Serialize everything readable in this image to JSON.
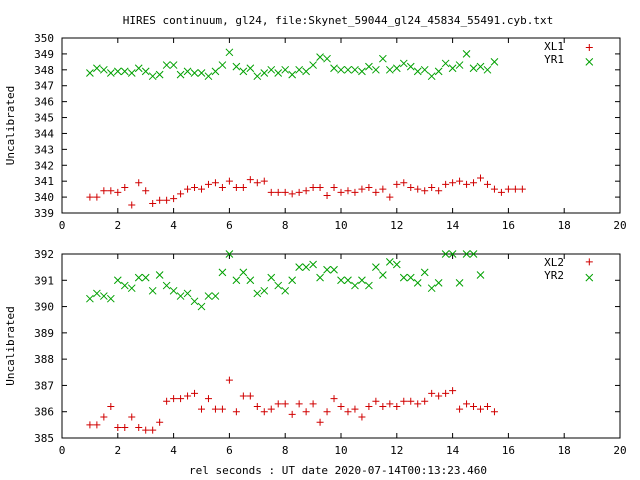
{
  "title": "HIRES continuum, gl24, file:Skynet_59044_gl24_45834_55491.cyb.txt",
  "xlabel": "rel seconds : UT date 2020-07-14T00:13:23.460",
  "colors": {
    "red": "#d00000",
    "green": "#00a000",
    "axis": "#000000"
  },
  "chart_data": [
    {
      "type": "scatter",
      "ylabel": "Uncalibrated",
      "xlim": [
        0,
        20
      ],
      "ylim": [
        339,
        350
      ],
      "xticks": [
        0,
        2,
        4,
        6,
        8,
        10,
        12,
        14,
        16,
        18,
        20
      ],
      "yticks": [
        339,
        340,
        341,
        342,
        343,
        344,
        345,
        346,
        347,
        348,
        349,
        350
      ],
      "grid": false,
      "legend_position": "top-right",
      "series": [
        {
          "name": "XL1",
          "color": "#d00000",
          "marker": "plus",
          "points": [
            [
              1.0,
              340.0
            ],
            [
              1.25,
              340.0
            ],
            [
              1.5,
              340.4
            ],
            [
              1.75,
              340.4
            ],
            [
              2.0,
              340.3
            ],
            [
              2.25,
              340.6
            ],
            [
              2.5,
              339.5
            ],
            [
              2.75,
              340.9
            ],
            [
              3.0,
              340.4
            ],
            [
              3.25,
              339.6
            ],
            [
              3.5,
              339.8
            ],
            [
              3.75,
              339.8
            ],
            [
              4.0,
              339.9
            ],
            [
              4.25,
              340.2
            ],
            [
              4.5,
              340.5
            ],
            [
              4.75,
              340.6
            ],
            [
              5.0,
              340.5
            ],
            [
              5.25,
              340.8
            ],
            [
              5.5,
              340.9
            ],
            [
              5.75,
              340.6
            ],
            [
              6.0,
              341.0
            ],
            [
              6.25,
              340.6
            ],
            [
              6.5,
              340.6
            ],
            [
              6.75,
              341.1
            ],
            [
              7.0,
              340.9
            ],
            [
              7.25,
              341.0
            ],
            [
              7.5,
              340.3
            ],
            [
              7.75,
              340.3
            ],
            [
              8.0,
              340.3
            ],
            [
              8.25,
              340.2
            ],
            [
              8.5,
              340.3
            ],
            [
              8.75,
              340.4
            ],
            [
              9.0,
              340.6
            ],
            [
              9.25,
              340.6
            ],
            [
              9.5,
              340.1
            ],
            [
              9.75,
              340.6
            ],
            [
              10.0,
              340.3
            ],
            [
              10.25,
              340.4
            ],
            [
              10.5,
              340.3
            ],
            [
              10.75,
              340.5
            ],
            [
              11.0,
              340.6
            ],
            [
              11.25,
              340.3
            ],
            [
              11.5,
              340.5
            ],
            [
              11.75,
              340.0
            ],
            [
              12.0,
              340.8
            ],
            [
              12.25,
              340.9
            ],
            [
              12.5,
              340.6
            ],
            [
              12.75,
              340.5
            ],
            [
              13.0,
              340.4
            ],
            [
              13.25,
              340.6
            ],
            [
              13.5,
              340.4
            ],
            [
              13.75,
              340.8
            ],
            [
              14.0,
              340.9
            ],
            [
              14.25,
              341.0
            ],
            [
              14.5,
              340.8
            ],
            [
              14.75,
              340.9
            ],
            [
              15.0,
              341.2
            ],
            [
              15.25,
              340.8
            ],
            [
              15.5,
              340.5
            ],
            [
              15.75,
              340.3
            ],
            [
              16.0,
              340.5
            ],
            [
              16.25,
              340.5
            ],
            [
              16.5,
              340.5
            ],
            [
              18.9,
              349.4
            ]
          ]
        },
        {
          "name": "YR1",
          "color": "#00a000",
          "marker": "cross",
          "points": [
            [
              1.0,
              347.8
            ],
            [
              1.25,
              348.1
            ],
            [
              1.5,
              348.0
            ],
            [
              1.75,
              347.8
            ],
            [
              2.0,
              347.9
            ],
            [
              2.25,
              347.9
            ],
            [
              2.5,
              347.8
            ],
            [
              2.75,
              348.1
            ],
            [
              3.0,
              347.9
            ],
            [
              3.25,
              347.6
            ],
            [
              3.5,
              347.7
            ],
            [
              3.75,
              348.3
            ],
            [
              4.0,
              348.3
            ],
            [
              4.25,
              347.7
            ],
            [
              4.5,
              347.9
            ],
            [
              4.75,
              347.8
            ],
            [
              5.0,
              347.8
            ],
            [
              5.25,
              347.6
            ],
            [
              5.5,
              347.9
            ],
            [
              5.75,
              348.3
            ],
            [
              6.0,
              349.1
            ],
            [
              6.25,
              348.2
            ],
            [
              6.5,
              347.9
            ],
            [
              6.75,
              348.1
            ],
            [
              7.0,
              347.6
            ],
            [
              7.25,
              347.8
            ],
            [
              7.5,
              348.0
            ],
            [
              7.75,
              347.8
            ],
            [
              8.0,
              348.0
            ],
            [
              8.25,
              347.7
            ],
            [
              8.5,
              348.0
            ],
            [
              8.75,
              347.9
            ],
            [
              9.0,
              348.3
            ],
            [
              9.25,
              348.8
            ],
            [
              9.5,
              348.7
            ],
            [
              9.75,
              348.1
            ],
            [
              10.0,
              348.0
            ],
            [
              10.25,
              348.0
            ],
            [
              10.5,
              348.0
            ],
            [
              10.75,
              347.9
            ],
            [
              11.0,
              348.2
            ],
            [
              11.25,
              348.0
            ],
            [
              11.5,
              348.7
            ],
            [
              11.75,
              348.0
            ],
            [
              12.0,
              348.1
            ],
            [
              12.25,
              348.4
            ],
            [
              12.5,
              348.2
            ],
            [
              12.75,
              347.9
            ],
            [
              13.0,
              348.0
            ],
            [
              13.25,
              347.6
            ],
            [
              13.5,
              347.9
            ],
            [
              13.75,
              348.4
            ],
            [
              14.0,
              348.1
            ],
            [
              14.25,
              348.3
            ],
            [
              14.5,
              349.0
            ],
            [
              14.75,
              348.1
            ],
            [
              15.0,
              348.2
            ],
            [
              15.25,
              348.0
            ],
            [
              15.5,
              348.5
            ],
            [
              18.9,
              348.5
            ]
          ]
        }
      ]
    },
    {
      "type": "scatter",
      "ylabel": "Uncalibrated",
      "xlim": [
        0,
        20
      ],
      "ylim": [
        385,
        392
      ],
      "xticks": [
        0,
        2,
        4,
        6,
        8,
        10,
        12,
        14,
        16,
        18,
        20
      ],
      "yticks": [
        385,
        386,
        387,
        388,
        389,
        390,
        391,
        392
      ],
      "grid": false,
      "legend_position": "top-right",
      "series": [
        {
          "name": "XL2",
          "color": "#d00000",
          "marker": "plus",
          "points": [
            [
              1.0,
              385.5
            ],
            [
              1.25,
              385.5
            ],
            [
              1.5,
              385.8
            ],
            [
              1.75,
              386.2
            ],
            [
              2.0,
              385.4
            ],
            [
              2.25,
              385.4
            ],
            [
              2.5,
              385.8
            ],
            [
              2.75,
              385.4
            ],
            [
              3.0,
              385.3
            ],
            [
              3.25,
              385.3
            ],
            [
              3.5,
              385.6
            ],
            [
              3.75,
              386.4
            ],
            [
              4.0,
              386.5
            ],
            [
              4.25,
              386.5
            ],
            [
              4.5,
              386.6
            ],
            [
              4.75,
              386.7
            ],
            [
              5.0,
              386.1
            ],
            [
              5.25,
              386.5
            ],
            [
              5.5,
              386.1
            ],
            [
              5.75,
              386.1
            ],
            [
              6.0,
              387.2
            ],
            [
              6.25,
              386.0
            ],
            [
              6.5,
              386.6
            ],
            [
              6.75,
              386.6
            ],
            [
              7.0,
              386.2
            ],
            [
              7.25,
              386.0
            ],
            [
              7.5,
              386.1
            ],
            [
              7.75,
              386.3
            ],
            [
              8.0,
              386.3
            ],
            [
              8.25,
              385.9
            ],
            [
              8.5,
              386.3
            ],
            [
              8.75,
              386.0
            ],
            [
              9.0,
              386.3
            ],
            [
              9.25,
              385.6
            ],
            [
              9.5,
              386.0
            ],
            [
              9.75,
              386.5
            ],
            [
              10.0,
              386.2
            ],
            [
              10.25,
              386.0
            ],
            [
              10.5,
              386.1
            ],
            [
              10.75,
              385.8
            ],
            [
              11.0,
              386.2
            ],
            [
              11.25,
              386.4
            ],
            [
              11.5,
              386.2
            ],
            [
              11.75,
              386.3
            ],
            [
              12.0,
              386.2
            ],
            [
              12.25,
              386.4
            ],
            [
              12.5,
              386.4
            ],
            [
              12.75,
              386.3
            ],
            [
              13.0,
              386.4
            ],
            [
              13.25,
              386.7
            ],
            [
              13.5,
              386.6
            ],
            [
              13.75,
              386.7
            ],
            [
              14.0,
              386.8
            ],
            [
              14.25,
              386.1
            ],
            [
              14.5,
              386.3
            ],
            [
              14.75,
              386.2
            ],
            [
              15.0,
              386.1
            ],
            [
              15.25,
              386.2
            ],
            [
              15.5,
              386.0
            ],
            [
              18.9,
              391.7
            ]
          ]
        },
        {
          "name": "YR2",
          "color": "#00a000",
          "marker": "cross",
          "points": [
            [
              1.0,
              390.3
            ],
            [
              1.25,
              390.5
            ],
            [
              1.5,
              390.4
            ],
            [
              1.75,
              390.3
            ],
            [
              2.0,
              391.0
            ],
            [
              2.25,
              390.8
            ],
            [
              2.5,
              390.7
            ],
            [
              2.75,
              391.1
            ],
            [
              3.0,
              391.1
            ],
            [
              3.25,
              390.6
            ],
            [
              3.5,
              391.2
            ],
            [
              3.75,
              390.8
            ],
            [
              4.0,
              390.6
            ],
            [
              4.25,
              390.4
            ],
            [
              4.5,
              390.5
            ],
            [
              4.75,
              390.2
            ],
            [
              5.0,
              390.0
            ],
            [
              5.25,
              390.4
            ],
            [
              5.5,
              390.4
            ],
            [
              5.75,
              391.3
            ],
            [
              6.0,
              392.0
            ],
            [
              6.25,
              391.0
            ],
            [
              6.5,
              391.3
            ],
            [
              6.75,
              391.0
            ],
            [
              7.0,
              390.5
            ],
            [
              7.25,
              390.6
            ],
            [
              7.5,
              391.1
            ],
            [
              7.75,
              390.8
            ],
            [
              8.0,
              390.6
            ],
            [
              8.25,
              391.0
            ],
            [
              8.5,
              391.5
            ],
            [
              8.75,
              391.5
            ],
            [
              9.0,
              391.6
            ],
            [
              9.25,
              391.1
            ],
            [
              9.5,
              391.4
            ],
            [
              9.75,
              391.4
            ],
            [
              10.0,
              391.0
            ],
            [
              10.25,
              391.0
            ],
            [
              10.5,
              390.8
            ],
            [
              10.75,
              391.0
            ],
            [
              11.0,
              390.8
            ],
            [
              11.25,
              391.5
            ],
            [
              11.5,
              391.2
            ],
            [
              11.75,
              391.7
            ],
            [
              12.0,
              391.6
            ],
            [
              12.25,
              391.1
            ],
            [
              12.5,
              391.1
            ],
            [
              12.75,
              390.9
            ],
            [
              13.0,
              391.3
            ],
            [
              13.25,
              390.7
            ],
            [
              13.5,
              390.9
            ],
            [
              13.75,
              392.0
            ],
            [
              14.0,
              392.0
            ],
            [
              14.25,
              390.9
            ],
            [
              14.5,
              392.0
            ],
            [
              14.75,
              392.0
            ],
            [
              15.0,
              391.2
            ],
            [
              18.9,
              391.1
            ]
          ]
        }
      ]
    }
  ]
}
